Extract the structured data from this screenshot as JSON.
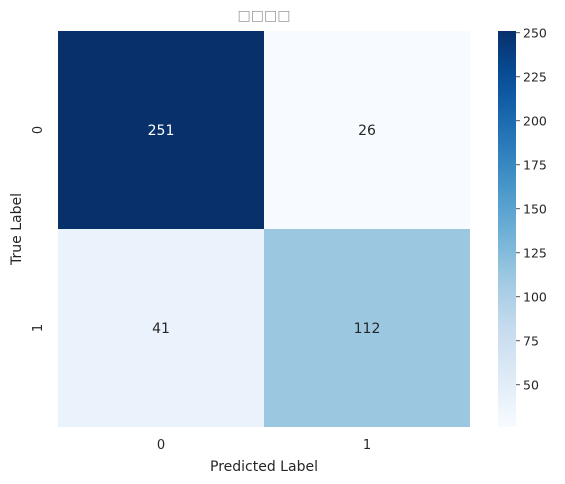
{
  "chart_data": {
    "type": "heatmap",
    "title": "□□□□",
    "xlabel": "Predicted Label",
    "ylabel": "True Label",
    "x_categories": [
      "0",
      "1"
    ],
    "y_categories": [
      "0",
      "1"
    ],
    "values": [
      [
        251,
        26
      ],
      [
        41,
        112
      ]
    ],
    "colormap": "Blues",
    "colorbar": {
      "range": [
        26,
        251
      ],
      "ticks": [
        50,
        75,
        100,
        125,
        150,
        175,
        200,
        225,
        250
      ]
    },
    "cell_annotations": true,
    "colors": {
      "low": "#f7fbff",
      "high": "#08306b"
    }
  }
}
